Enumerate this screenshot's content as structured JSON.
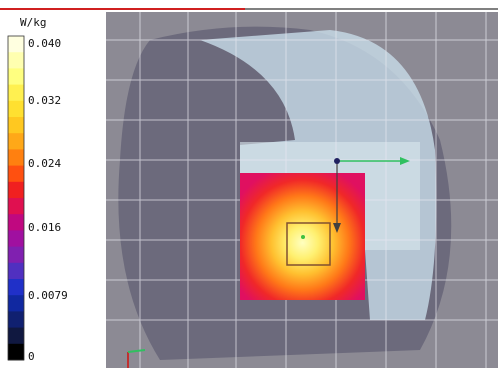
{
  "colorbar": {
    "unit": "W/kg",
    "labels": [
      "0.040",
      "0.032",
      "0.024",
      "0.016",
      "0.0079",
      "0"
    ],
    "colors": [
      "#ffffe0",
      "#ffffb0",
      "#ffff80",
      "#fff050",
      "#ffe030",
      "#ffc820",
      "#ffa818",
      "#ff8010",
      "#ff5010",
      "#f02020",
      "#e01050",
      "#c00880",
      "#a010a0",
      "#8020b0",
      "#5030c0",
      "#2030c8",
      "#1028a0",
      "#102070",
      "#101840",
      "#000000"
    ]
  }
}
